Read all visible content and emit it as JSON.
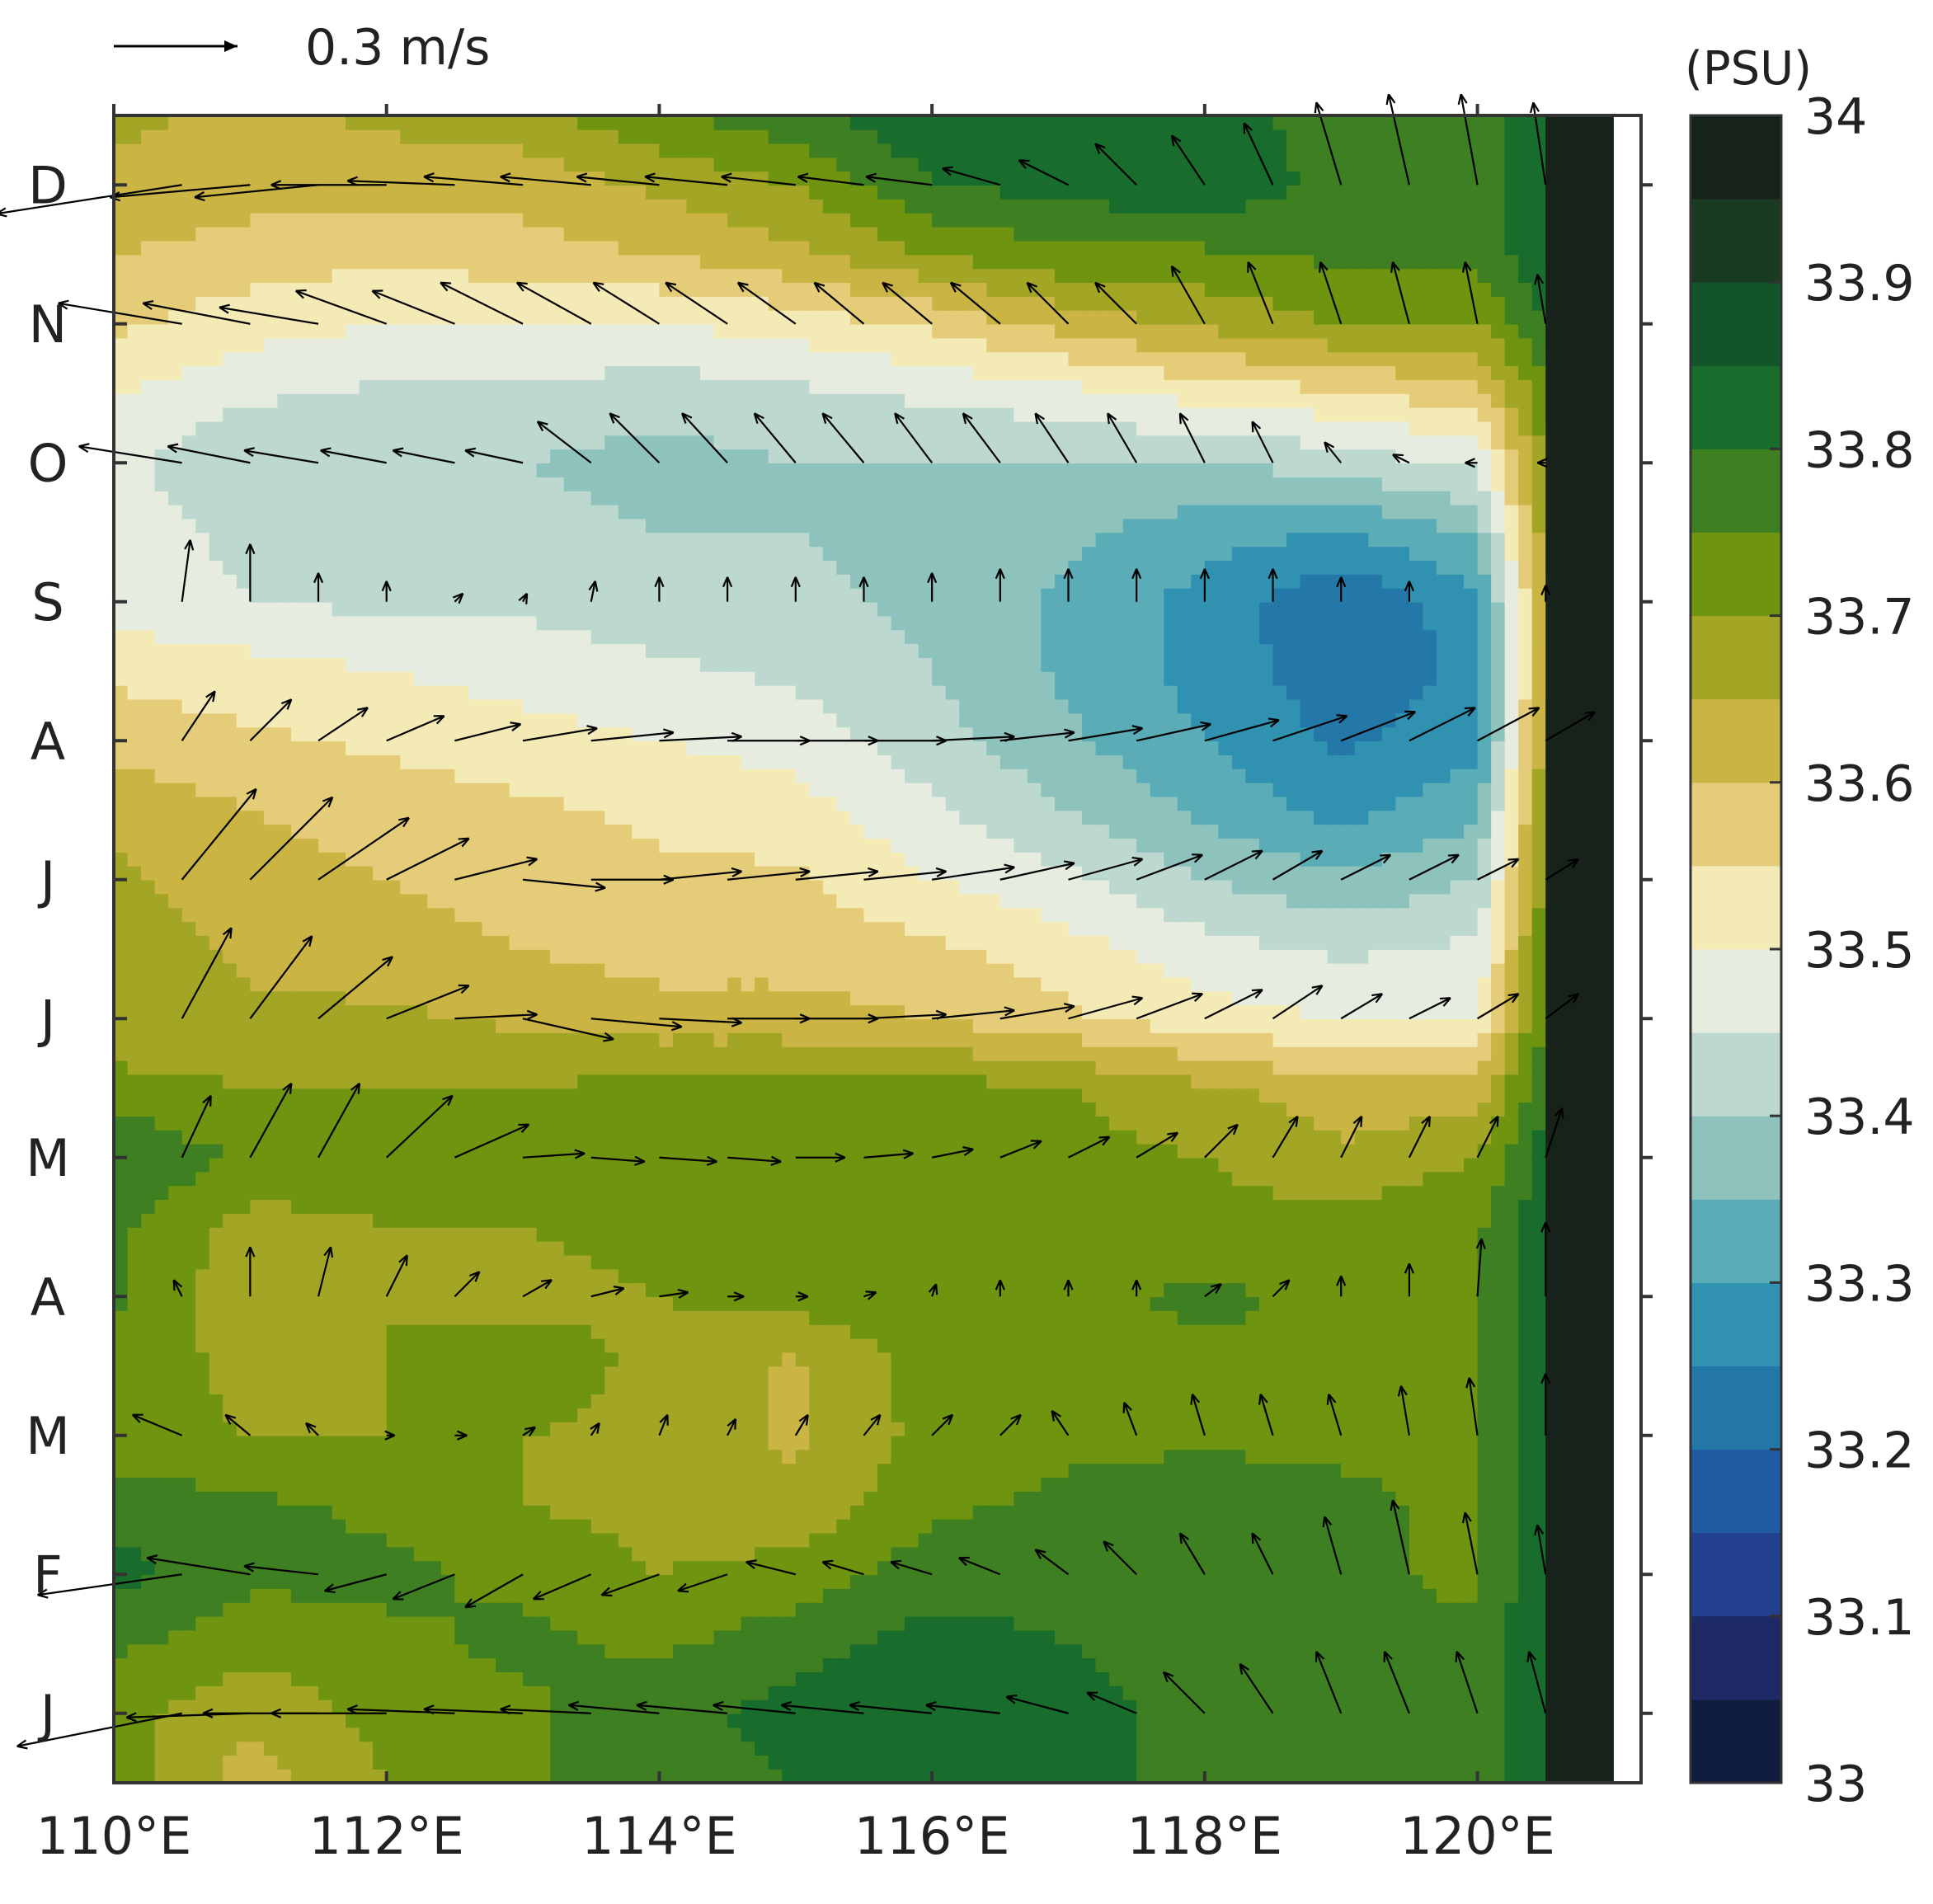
{
  "chart_data": {
    "type": "heatmap",
    "title": "",
    "xlabel": "",
    "ylabel": "",
    "x_ticks": [
      "110°E",
      "112°E",
      "114°E",
      "116°E",
      "118°E",
      "120°E"
    ],
    "x_tick_values": [
      110,
      112,
      114,
      116,
      118,
      120
    ],
    "xlim": [
      110,
      121.2
    ],
    "y_ticks": [
      "J",
      "F",
      "M",
      "A",
      "M",
      "J",
      "J",
      "A",
      "S",
      "O",
      "N",
      "D"
    ],
    "y_tick_values": [
      1,
      2,
      3,
      4,
      5,
      6,
      7,
      8,
      9,
      10,
      11,
      12
    ],
    "ylim": [
      0.5,
      12.5
    ],
    "colorbar": {
      "unit_label": "(PSU)",
      "levels": [
        33.0,
        33.05,
        33.1,
        33.15,
        33.2,
        33.25,
        33.3,
        33.35,
        33.4,
        33.45,
        33.5,
        33.55,
        33.6,
        33.65,
        33.7,
        33.75,
        33.8,
        33.85,
        33.9,
        33.95,
        34.0
      ],
      "colors": [
        "#101c40",
        "#1e2a66",
        "#22408f",
        "#1f5aa3",
        "#2478a8",
        "#3191b0",
        "#5aacb6",
        "#8ec2bd",
        "#bcd8cf",
        "#e6ece0",
        "#f4eab5",
        "#e5cc78",
        "#c9b444",
        "#a3a524",
        "#6e9410",
        "#3e7f22",
        "#186c2c",
        "#13542a",
        "#1a3a22",
        "#17231a"
      ],
      "tick_labels": [
        "33",
        "33.1",
        "33.2",
        "33.3",
        "33.4",
        "33.5",
        "33.6",
        "33.7",
        "33.8",
        "33.9",
        "34"
      ],
      "tick_values": [
        33.0,
        33.1,
        33.2,
        33.3,
        33.4,
        33.5,
        33.6,
        33.7,
        33.8,
        33.9,
        34.0
      ]
    },
    "salinity_field": {
      "x": [
        110,
        111,
        112,
        113,
        114,
        115,
        116,
        117,
        118,
        119,
        120,
        120.5,
        121
      ],
      "y": [
        0.5,
        1,
        1.5,
        2,
        2.5,
        3,
        3.5,
        4,
        4.5,
        5,
        5.5,
        6,
        6.5,
        7,
        7.5,
        8,
        8.5,
        9,
        9.5,
        10,
        10.5,
        11,
        11.5,
        12,
        12.5
      ],
      "values": [
        [
          33.74,
          33.62,
          33.7,
          33.74,
          33.78,
          33.8,
          33.84,
          33.82,
          33.78,
          33.76,
          33.76,
          33.85,
          34.0
        ],
        [
          33.72,
          33.66,
          33.72,
          33.74,
          33.78,
          33.82,
          33.85,
          33.82,
          33.78,
          33.76,
          33.76,
          33.85,
          34.0
        ],
        [
          33.76,
          33.72,
          33.74,
          33.76,
          33.74,
          33.78,
          33.82,
          33.8,
          33.78,
          33.76,
          33.76,
          33.85,
          34.0
        ],
        [
          33.82,
          33.76,
          33.76,
          33.74,
          33.7,
          33.72,
          33.78,
          33.78,
          33.8,
          33.76,
          33.74,
          33.85,
          34.0
        ],
        [
          33.78,
          33.76,
          33.74,
          33.7,
          33.68,
          33.66,
          33.74,
          33.76,
          33.78,
          33.76,
          33.74,
          33.84,
          34.0
        ],
        [
          33.72,
          33.7,
          33.7,
          33.7,
          33.68,
          33.64,
          33.72,
          33.74,
          33.74,
          33.74,
          33.74,
          33.84,
          34.0
        ],
        [
          33.74,
          33.68,
          33.7,
          33.74,
          33.68,
          33.64,
          33.72,
          33.72,
          33.74,
          33.74,
          33.74,
          33.84,
          34.0
        ],
        [
          33.76,
          33.66,
          33.7,
          33.68,
          33.7,
          33.72,
          33.74,
          33.74,
          33.76,
          33.74,
          33.74,
          33.84,
          34.0
        ],
        [
          33.76,
          33.68,
          33.7,
          33.7,
          33.72,
          33.72,
          33.72,
          33.72,
          33.72,
          33.72,
          33.74,
          33.84,
          34.0
        ],
        [
          33.8,
          33.74,
          33.72,
          33.72,
          33.72,
          33.72,
          33.72,
          33.72,
          33.7,
          33.66,
          33.7,
          33.82,
          34.0
        ],
        [
          33.72,
          33.7,
          33.7,
          33.7,
          33.72,
          33.72,
          33.72,
          33.7,
          33.66,
          33.62,
          33.62,
          33.8,
          34.0
        ],
        [
          33.66,
          33.66,
          33.66,
          33.64,
          33.62,
          33.62,
          33.6,
          33.56,
          33.52,
          33.5,
          33.5,
          33.76,
          34.0
        ],
        [
          33.68,
          33.64,
          33.62,
          33.6,
          33.58,
          33.58,
          33.56,
          33.52,
          33.47,
          33.44,
          33.46,
          33.74,
          34.0
        ],
        [
          33.66,
          33.62,
          33.6,
          33.58,
          33.56,
          33.56,
          33.5,
          33.46,
          33.4,
          33.36,
          33.4,
          33.72,
          34.0
        ],
        [
          33.64,
          33.6,
          33.58,
          33.56,
          33.54,
          33.52,
          33.46,
          33.4,
          33.34,
          33.28,
          33.34,
          33.7,
          34.0
        ],
        [
          33.58,
          33.56,
          33.54,
          33.52,
          33.5,
          33.48,
          33.42,
          33.36,
          33.3,
          33.24,
          33.28,
          33.68,
          34.0
        ],
        [
          33.54,
          33.52,
          33.5,
          33.48,
          33.46,
          33.44,
          33.4,
          33.34,
          33.28,
          33.22,
          33.26,
          33.66,
          34.0
        ],
        [
          33.47,
          33.45,
          33.44,
          33.44,
          33.42,
          33.42,
          33.38,
          33.34,
          33.28,
          33.2,
          33.28,
          33.66,
          34.0
        ],
        [
          33.47,
          33.44,
          33.42,
          33.42,
          33.4,
          33.4,
          33.38,
          33.36,
          33.32,
          33.3,
          33.36,
          33.68,
          34.0
        ],
        [
          33.47,
          33.4,
          33.42,
          33.4,
          33.38,
          33.4,
          33.4,
          33.4,
          33.4,
          33.42,
          33.46,
          33.7,
          34.0
        ],
        [
          33.5,
          33.46,
          33.44,
          33.44,
          33.42,
          33.44,
          33.46,
          33.48,
          33.52,
          33.54,
          33.58,
          33.74,
          34.0
        ],
        [
          33.56,
          33.52,
          33.5,
          33.5,
          33.5,
          33.52,
          33.56,
          33.62,
          33.66,
          33.7,
          33.7,
          33.8,
          34.0
        ],
        [
          33.6,
          33.58,
          33.56,
          33.58,
          33.6,
          33.64,
          33.7,
          33.74,
          33.74,
          33.76,
          33.76,
          33.84,
          34.0
        ],
        [
          33.64,
          33.62,
          33.62,
          33.62,
          33.66,
          33.7,
          33.8,
          33.82,
          33.84,
          33.78,
          33.76,
          33.85,
          34.0
        ],
        [
          33.66,
          33.64,
          33.66,
          33.68,
          33.74,
          33.78,
          33.84,
          33.84,
          33.82,
          33.78,
          33.76,
          33.85,
          34.0
        ]
      ]
    },
    "land_mask_from_lon": 120.5,
    "current_vectors": {
      "unit_label": "0.3 m/s",
      "reference_speed": 0.3,
      "x": [
        110.5,
        111,
        111.5,
        112,
        112.5,
        113,
        113.5,
        114,
        114.5,
        115,
        115.5,
        116,
        116.5,
        117,
        117.5,
        118,
        118.5,
        119,
        119.5,
        120,
        120.5
      ],
      "y": [
        1,
        2,
        3,
        4,
        5,
        6,
        7,
        8,
        9,
        10,
        11,
        12
      ],
      "u": [
        [
          -0.4,
          -0.3,
          -0.28,
          -0.28,
          -0.26,
          -0.24,
          -0.22,
          -0.22,
          -0.22,
          -0.2,
          -0.2,
          -0.2,
          -0.18,
          -0.15,
          -0.12,
          -0.1,
          -0.08,
          -0.06,
          -0.06,
          -0.05,
          -0.04
        ],
        [
          -0.35,
          -0.25,
          -0.18,
          -0.15,
          -0.15,
          -0.14,
          -0.14,
          -0.14,
          -0.12,
          -0.12,
          -0.1,
          -0.1,
          -0.1,
          -0.08,
          -0.08,
          -0.06,
          -0.05,
          -0.04,
          -0.04,
          -0.03,
          -0.02
        ],
        [
          -0.12,
          -0.06,
          -0.03,
          0.02,
          0.03,
          0.03,
          0.02,
          0.02,
          0.02,
          0.03,
          0.04,
          0.05,
          0.05,
          -0.04,
          -0.03,
          -0.03,
          -0.03,
          -0.03,
          -0.02,
          -0.02,
          0.0
        ],
        [
          -0.02,
          0.0,
          0.03,
          0.05,
          0.06,
          0.07,
          0.08,
          0.07,
          0.04,
          0.03,
          0.03,
          0.01,
          0.0,
          0.0,
          0.0,
          0.04,
          0.04,
          0.0,
          0.0,
          0.01,
          0.0
        ],
        [
          0.07,
          0.1,
          0.1,
          0.16,
          0.18,
          0.15,
          0.13,
          0.14,
          0.13,
          0.12,
          0.12,
          0.1,
          0.1,
          0.1,
          0.1,
          0.08,
          0.06,
          0.05,
          0.05,
          0.05,
          0.04
        ],
        [
          0.12,
          0.15,
          0.18,
          0.2,
          0.2,
          0.22,
          0.22,
          0.2,
          0.2,
          0.2,
          0.2,
          0.2,
          0.18,
          0.18,
          0.16,
          0.14,
          0.12,
          0.1,
          0.1,
          0.1,
          0.08
        ],
        [
          0.18,
          0.2,
          0.22,
          0.2,
          0.2,
          0.2,
          0.2,
          0.2,
          0.2,
          0.2,
          0.2,
          0.2,
          0.18,
          0.18,
          0.16,
          0.14,
          0.12,
          0.12,
          0.12,
          0.1,
          0.08
        ],
        [
          0.08,
          0.1,
          0.12,
          0.14,
          0.16,
          0.18,
          0.2,
          0.2,
          0.2,
          0.2,
          0.2,
          0.2,
          0.18,
          0.18,
          0.18,
          0.18,
          0.18,
          0.18,
          0.16,
          0.15,
          0.12
        ],
        [
          0.02,
          0.0,
          0.0,
          0.0,
          0.02,
          0.01,
          0.01,
          0.0,
          0.0,
          0.0,
          0.0,
          0.0,
          0.0,
          0.0,
          0.0,
          0.0,
          0.0,
          0.0,
          0.0,
          0.0,
          0.0
        ],
        [
          -0.25,
          -0.2,
          -0.18,
          -0.16,
          -0.15,
          -0.14,
          -0.13,
          -0.12,
          -0.11,
          -0.1,
          -0.1,
          -0.09,
          -0.09,
          -0.08,
          -0.07,
          -0.06,
          -0.05,
          -0.04,
          -0.04,
          -0.03,
          -0.02
        ],
        [
          -0.3,
          -0.26,
          -0.24,
          -0.22,
          -0.2,
          -0.2,
          -0.18,
          -0.16,
          -0.15,
          -0.14,
          -0.12,
          -0.12,
          -0.12,
          -0.1,
          -0.1,
          -0.08,
          -0.06,
          -0.05,
          -0.04,
          -0.03,
          -0.02
        ],
        [
          -0.45,
          -0.34,
          -0.3,
          -0.28,
          -0.26,
          -0.24,
          -0.22,
          -0.2,
          -0.2,
          -0.18,
          -0.16,
          -0.16,
          -0.14,
          -0.12,
          -0.1,
          -0.08,
          -0.07,
          -0.06,
          -0.05,
          -0.04,
          -0.03
        ]
      ],
      "v": [
        [
          -0.08,
          -0.01,
          0.0,
          0.0,
          0.01,
          0.01,
          0.01,
          0.02,
          0.02,
          0.02,
          0.02,
          0.02,
          0.02,
          0.04,
          0.05,
          0.1,
          0.12,
          0.15,
          0.15,
          0.15,
          0.15
        ],
        [
          -0.05,
          0.04,
          0.02,
          -0.04,
          -0.06,
          -0.08,
          -0.06,
          -0.05,
          -0.04,
          0.03,
          0.03,
          0.03,
          0.04,
          0.06,
          0.08,
          0.1,
          0.1,
          0.14,
          0.18,
          0.15,
          0.12
        ],
        [
          0.05,
          0.05,
          0.03,
          0.0,
          0.0,
          0.02,
          0.03,
          0.05,
          0.04,
          0.05,
          0.05,
          0.05,
          0.05,
          0.06,
          0.08,
          0.1,
          0.1,
          0.1,
          0.12,
          0.14,
          0.15
        ],
        [
          0.04,
          0.12,
          0.12,
          0.1,
          0.06,
          0.04,
          0.02,
          0.01,
          0.0,
          0.0,
          0.01,
          0.03,
          0.04,
          0.04,
          0.04,
          0.03,
          0.04,
          0.05,
          0.08,
          0.14,
          0.18
        ],
        [
          0.15,
          0.18,
          0.18,
          0.15,
          0.08,
          0.01,
          -0.01,
          -0.01,
          -0.01,
          0.0,
          0.01,
          0.02,
          0.04,
          0.05,
          0.06,
          0.08,
          0.1,
          0.1,
          0.1,
          0.1,
          0.12
        ],
        [
          0.22,
          0.2,
          0.15,
          0.08,
          0.01,
          -0.05,
          -0.02,
          -0.01,
          0.0,
          0.0,
          0.01,
          0.02,
          0.03,
          0.05,
          0.06,
          0.07,
          0.08,
          0.06,
          0.05,
          0.06,
          0.06
        ],
        [
          0.22,
          0.2,
          0.15,
          0.1,
          0.05,
          -0.02,
          0.0,
          0.02,
          0.02,
          0.02,
          0.02,
          0.03,
          0.04,
          0.05,
          0.06,
          0.07,
          0.07,
          0.06,
          0.06,
          0.05,
          0.05
        ],
        [
          0.12,
          0.1,
          0.08,
          0.06,
          0.04,
          0.03,
          0.02,
          0.01,
          0.0,
          0.0,
          0.0,
          0.01,
          0.02,
          0.03,
          0.04,
          0.05,
          0.06,
          0.07,
          0.08,
          0.08,
          0.07
        ],
        [
          0.15,
          0.14,
          0.07,
          0.05,
          0.02,
          0.02,
          0.05,
          0.06,
          0.06,
          0.06,
          0.06,
          0.07,
          0.08,
          0.08,
          0.08,
          0.08,
          0.08,
          0.06,
          0.05,
          0.0,
          0.04
        ],
        [
          0.04,
          0.04,
          0.03,
          0.03,
          0.03,
          0.03,
          0.1,
          0.12,
          0.12,
          0.12,
          0.12,
          0.12,
          0.12,
          0.12,
          0.12,
          0.12,
          0.1,
          0.05,
          0.02,
          0.0,
          0.0
        ],
        [
          0.05,
          0.05,
          0.04,
          0.08,
          0.08,
          0.1,
          0.1,
          0.1,
          0.1,
          0.1,
          0.1,
          0.1,
          0.1,
          0.1,
          0.1,
          0.14,
          0.15,
          0.15,
          0.15,
          0.15,
          0.12
        ],
        [
          -0.07,
          -0.03,
          -0.03,
          0.0,
          0.01,
          0.02,
          0.02,
          0.02,
          0.02,
          0.02,
          0.02,
          0.02,
          0.04,
          0.06,
          0.1,
          0.12,
          0.15,
          0.2,
          0.22,
          0.22,
          0.2
        ]
      ]
    }
  }
}
